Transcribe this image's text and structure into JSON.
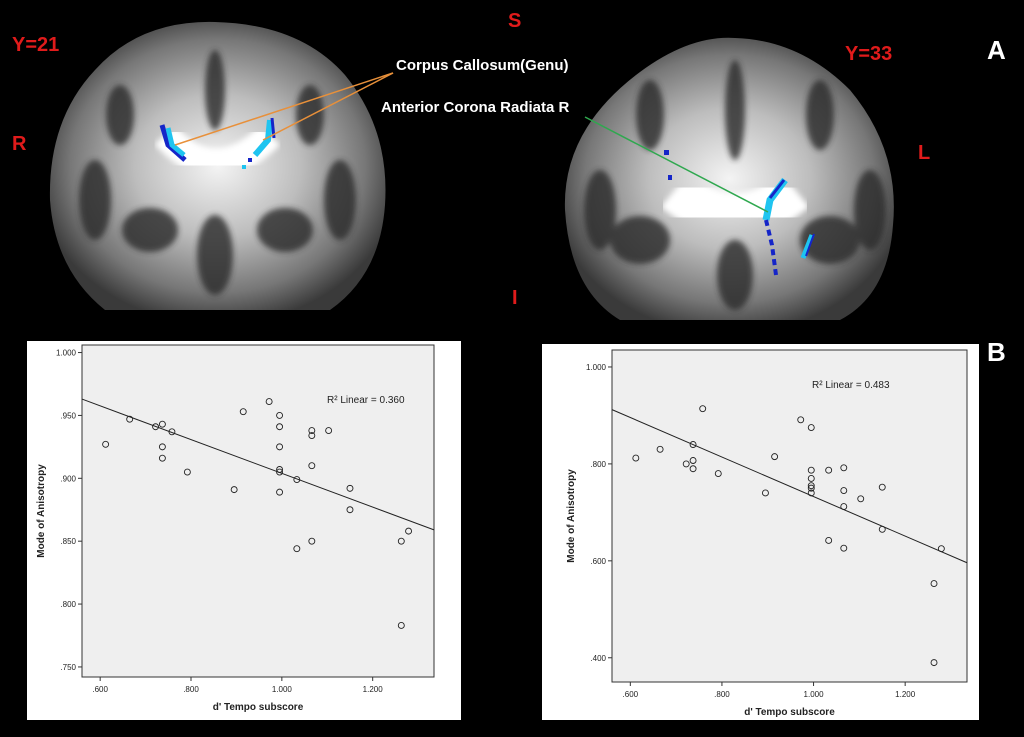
{
  "brain_labels": {
    "y_left": "Y=21",
    "y_right": "Y=33",
    "superior": "S",
    "inferior": "I",
    "right_side": "R",
    "left_side": "L",
    "corpus_callosum": "Corpus Callosum(Genu)",
    "corona_radiata": "Anterior Corona Radiata R",
    "panel_a": "A",
    "panel_b": "B"
  },
  "colors": {
    "label_red": "#e01b1b",
    "cc_line": "#e8903a",
    "acr_line": "#2fa84f",
    "cluster_light": "#1fc4f0",
    "cluster_dark": "#1525c8",
    "plot_bg": "#efefef"
  },
  "chart_data": [
    {
      "type": "scatter",
      "title": "",
      "xlabel": "d' Tempo subscore",
      "ylabel": "Mode of Anisotropy",
      "annotation": "R² Linear = 0.360",
      "xlim": [
        0.56,
        1.335
      ],
      "ylim": [
        0.742,
        1.006
      ],
      "xticks": [
        0.6,
        0.8,
        1.0,
        1.2
      ],
      "xtick_labels": [
        ".600",
        ".800",
        "1.000",
        "1.200"
      ],
      "yticks": [
        0.75,
        0.8,
        0.85,
        0.9,
        0.95,
        1.0
      ],
      "ytick_labels": [
        ".750",
        ".800",
        ".850",
        ".900",
        ".950",
        "1.000"
      ],
      "fit_line": [
        [
          0.56,
          0.963
        ],
        [
          1.335,
          0.859
        ]
      ],
      "points": [
        [
          0.612,
          0.927
        ],
        [
          0.665,
          0.947
        ],
        [
          0.722,
          0.941
        ],
        [
          0.737,
          0.943
        ],
        [
          0.737,
          0.925
        ],
        [
          0.737,
          0.916
        ],
        [
          0.758,
          0.937
        ],
        [
          0.792,
          0.905
        ],
        [
          0.895,
          0.891
        ],
        [
          0.915,
          0.953
        ],
        [
          0.972,
          0.961
        ],
        [
          0.995,
          0.95
        ],
        [
          0.995,
          0.941
        ],
        [
          0.995,
          0.925
        ],
        [
          0.995,
          0.907
        ],
        [
          0.995,
          0.905
        ],
        [
          0.995,
          0.889
        ],
        [
          1.033,
          0.899
        ],
        [
          1.033,
          0.844
        ],
        [
          1.066,
          0.938
        ],
        [
          1.066,
          0.934
        ],
        [
          1.066,
          0.91
        ],
        [
          1.066,
          0.85
        ],
        [
          1.103,
          0.938
        ],
        [
          1.15,
          0.892
        ],
        [
          1.15,
          0.875
        ],
        [
          1.263,
          0.85
        ],
        [
          1.279,
          0.858
        ],
        [
          1.263,
          0.783
        ]
      ]
    },
    {
      "type": "scatter",
      "title": "",
      "xlabel": "d' Tempo subscore",
      "ylabel": "Mode of Anisotropy",
      "annotation": "R² Linear = 0.483",
      "xlim": [
        0.56,
        1.335
      ],
      "ylim": [
        0.35,
        1.035
      ],
      "xticks": [
        0.6,
        0.8,
        1.0,
        1.2
      ],
      "xtick_labels": [
        ".600",
        ".800",
        "1.000",
        "1.200"
      ],
      "yticks": [
        0.4,
        0.6,
        0.8,
        1.0
      ],
      "ytick_labels": [
        ".400",
        ".600",
        ".800",
        "1.000"
      ],
      "fit_line": [
        [
          0.56,
          0.912
        ],
        [
          1.335,
          0.596
        ]
      ],
      "points": [
        [
          0.612,
          0.812
        ],
        [
          0.665,
          0.83
        ],
        [
          0.722,
          0.8
        ],
        [
          0.737,
          0.84
        ],
        [
          0.737,
          0.807
        ],
        [
          0.737,
          0.79
        ],
        [
          0.758,
          0.914
        ],
        [
          0.792,
          0.78
        ],
        [
          0.895,
          0.74
        ],
        [
          0.915,
          0.815
        ],
        [
          0.972,
          0.891
        ],
        [
          0.995,
          0.875
        ],
        [
          0.995,
          0.787
        ],
        [
          0.995,
          0.77
        ],
        [
          0.995,
          0.755
        ],
        [
          0.995,
          0.75
        ],
        [
          0.995,
          0.74
        ],
        [
          1.033,
          0.787
        ],
        [
          1.033,
          0.642
        ],
        [
          1.066,
          0.792
        ],
        [
          1.066,
          0.745
        ],
        [
          1.066,
          0.712
        ],
        [
          1.066,
          0.626
        ],
        [
          1.103,
          0.728
        ],
        [
          1.15,
          0.752
        ],
        [
          1.15,
          0.665
        ],
        [
          1.263,
          0.553
        ],
        [
          1.279,
          0.625
        ],
        [
          1.263,
          0.39
        ]
      ]
    }
  ]
}
